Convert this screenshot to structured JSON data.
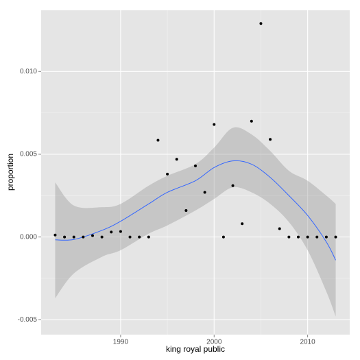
{
  "chart_data": {
    "type": "scatter",
    "x_label": "king royal public",
    "y_label": "proportion",
    "x": [
      1983,
      1984,
      1985,
      1986,
      1987,
      1988,
      1989,
      1990,
      1991,
      1992,
      1993,
      1994,
      1995,
      1996,
      1997,
      1998,
      1999,
      2000,
      2001,
      2002,
      2003,
      2004,
      2005,
      2006,
      2007,
      2008,
      2009,
      2010,
      2011,
      2012,
      2013
    ],
    "values": [
      0.00012,
      0,
      0,
      0,
      8e-05,
      0,
      0.0003,
      0.00033,
      0,
      0,
      0,
      0.00585,
      0.0038,
      0.0047,
      0.0016,
      0.0043,
      0.0027,
      0.0068,
      0,
      0.0031,
      0.0008,
      0.007,
      0.0129,
      0.0059,
      0.0005,
      0,
      0,
      0,
      0,
      0,
      0
    ],
    "color": "#000000",
    "smooth": {
      "color": "#3366ff",
      "band_color": "#999999",
      "x": [
        1983,
        1985,
        1988,
        1990,
        1993,
        1995,
        1998,
        2000,
        2002,
        2004,
        2006,
        2008,
        2010,
        2012,
        2013
      ],
      "values": [
        -0.00017,
        -0.00015,
        0.0004,
        0.00095,
        0.002,
        0.0027,
        0.0034,
        0.0042,
        0.0046,
        0.0044,
        0.0036,
        0.0025,
        0.0013,
        -0.0003,
        -0.0014
      ],
      "upper": [
        0.0033,
        0.0019,
        0.0018,
        0.002,
        0.0031,
        0.0037,
        0.0044,
        0.0054,
        0.0066,
        0.0062,
        0.0052,
        0.004,
        0.0034,
        0.0025,
        0.002
      ],
      "lower": [
        -0.0037,
        -0.0022,
        -0.0012,
        -0.0008,
        0.0002,
        0.0007,
        0.0016,
        0.0023,
        0.003,
        0.0027,
        0.002,
        0.0009,
        -0.0008,
        -0.0033,
        -0.0048
      ]
    },
    "xlim": [
      1981.5,
      2014.5
    ],
    "ylim": [
      -0.0059,
      0.0137
    ],
    "xticks": [
      1990,
      2000,
      2010
    ],
    "yticks": [
      {
        "value": -0.005,
        "label": "-0.005"
      },
      {
        "value": 0,
        "label": "0.000"
      },
      {
        "value": 0.005,
        "label": "0.005"
      },
      {
        "value": 0.01,
        "label": "0.010"
      }
    ],
    "grid": true
  }
}
